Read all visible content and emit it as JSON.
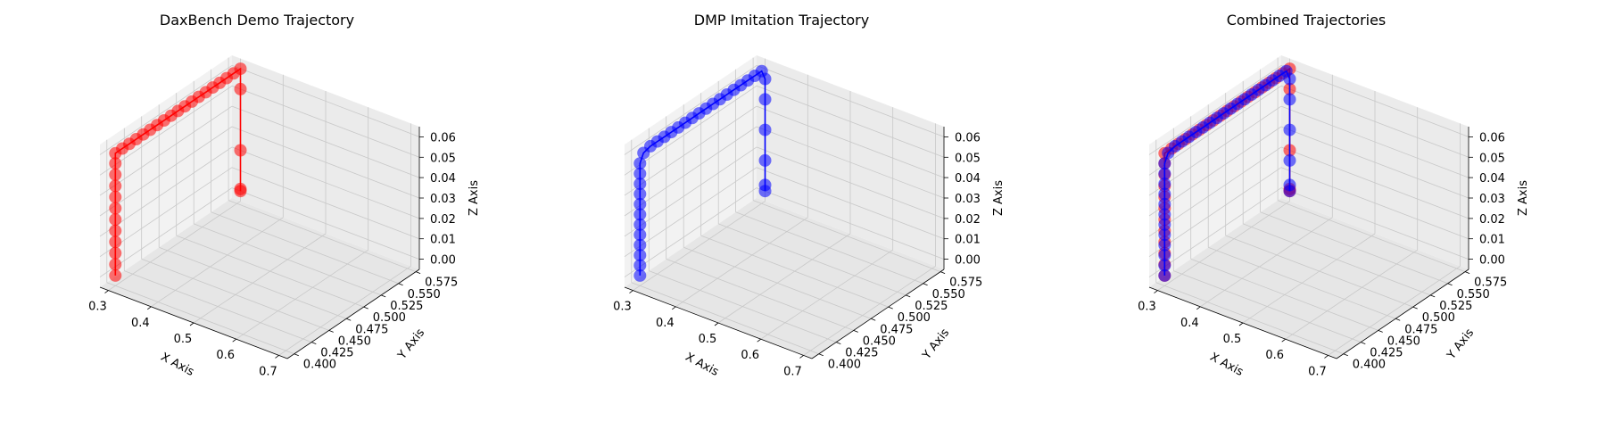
{
  "chart_data": [
    {
      "type": "scatter3d",
      "title": "DaxBench Demo Trajectory",
      "xlabel": "X Axis",
      "ylabel": "Y Axis",
      "zlabel": "Z Axis",
      "xlim": [
        0.28,
        0.72
      ],
      "ylim": [
        0.39,
        0.58
      ],
      "zlim": [
        -0.005,
        0.065
      ],
      "x_ticks": [
        "0.3",
        "0.4",
        "0.5",
        "0.6",
        "0.7"
      ],
      "y_ticks": [
        "0.400",
        "0.425",
        "0.450",
        "0.475",
        "0.500",
        "0.525",
        "0.550",
        "0.575"
      ],
      "z_ticks": [
        "0.00",
        "0.01",
        "0.02",
        "0.03",
        "0.04",
        "0.05",
        "0.06"
      ],
      "grid": true,
      "series": [
        {
          "color": "#ff0000",
          "points": [
            [
              0.3,
              0.4,
              0.0
            ],
            [
              0.3,
              0.4,
              0.0055
            ],
            [
              0.3,
              0.4,
              0.011
            ],
            [
              0.3,
              0.4,
              0.0165
            ],
            [
              0.3,
              0.4,
              0.022
            ],
            [
              0.3,
              0.4,
              0.0275
            ],
            [
              0.3,
              0.4,
              0.033
            ],
            [
              0.3,
              0.4,
              0.0385
            ],
            [
              0.3,
              0.4,
              0.044
            ],
            [
              0.3,
              0.4,
              0.0495
            ],
            [
              0.3,
              0.4,
              0.055
            ],
            [
              0.3,
              0.4,
              0.06
            ],
            [
              0.3,
              0.41,
              0.06
            ],
            [
              0.3,
              0.42,
              0.06
            ],
            [
              0.3,
              0.43,
              0.06
            ],
            [
              0.3,
              0.44,
              0.06
            ],
            [
              0.3,
              0.45,
              0.06
            ],
            [
              0.3,
              0.46,
              0.06
            ],
            [
              0.3,
              0.47,
              0.06
            ],
            [
              0.3,
              0.48,
              0.06
            ],
            [
              0.3,
              0.49,
              0.06
            ],
            [
              0.3,
              0.5,
              0.06
            ],
            [
              0.3,
              0.51,
              0.06
            ],
            [
              0.3,
              0.52,
              0.06
            ],
            [
              0.3,
              0.53,
              0.06
            ],
            [
              0.3,
              0.54,
              0.06
            ],
            [
              0.3,
              0.55,
              0.06
            ],
            [
              0.3,
              0.56,
              0.06
            ],
            [
              0.3,
              0.57,
              0.06
            ],
            [
              0.3,
              0.58,
              0.06
            ],
            [
              0.3,
              0.58,
              0.05
            ],
            [
              0.3,
              0.58,
              0.02
            ],
            [
              0.3,
              0.58,
              0.001
            ],
            [
              0.3,
              0.58,
              0.0
            ]
          ]
        }
      ]
    },
    {
      "type": "scatter3d",
      "title": "DMP Imitation Trajectory",
      "xlabel": "X Axis",
      "ylabel": "Y Axis",
      "zlabel": "Z Axis",
      "xlim": [
        0.28,
        0.72
      ],
      "ylim": [
        0.39,
        0.58
      ],
      "zlim": [
        -0.005,
        0.065
      ],
      "x_ticks": [
        "0.3",
        "0.4",
        "0.5",
        "0.6",
        "0.7"
      ],
      "y_ticks": [
        "0.400",
        "0.425",
        "0.450",
        "0.475",
        "0.500",
        "0.525",
        "0.550",
        "0.575"
      ],
      "z_ticks": [
        "0.00",
        "0.01",
        "0.02",
        "0.03",
        "0.04",
        "0.05",
        "0.06"
      ],
      "grid": true,
      "series": [
        {
          "color": "#0000ff",
          "points": [
            [
              0.3,
              0.4,
              0.0
            ],
            [
              0.3,
              0.4,
              0.005
            ],
            [
              0.3,
              0.4,
              0.01
            ],
            [
              0.3,
              0.4,
              0.015
            ],
            [
              0.3,
              0.4,
              0.02
            ],
            [
              0.3,
              0.4,
              0.025
            ],
            [
              0.3,
              0.4,
              0.03
            ],
            [
              0.3,
              0.4,
              0.035
            ],
            [
              0.3,
              0.4,
              0.04
            ],
            [
              0.3,
              0.4,
              0.045
            ],
            [
              0.3,
              0.4,
              0.05
            ],
            [
              0.3,
              0.4,
              0.055
            ],
            [
              0.3,
              0.405,
              0.059
            ],
            [
              0.3,
              0.415,
              0.06
            ],
            [
              0.3,
              0.425,
              0.06
            ],
            [
              0.3,
              0.435,
              0.06
            ],
            [
              0.3,
              0.445,
              0.06
            ],
            [
              0.3,
              0.455,
              0.06
            ],
            [
              0.3,
              0.465,
              0.06
            ],
            [
              0.3,
              0.475,
              0.06
            ],
            [
              0.3,
              0.485,
              0.06
            ],
            [
              0.3,
              0.495,
              0.06
            ],
            [
              0.3,
              0.505,
              0.06
            ],
            [
              0.3,
              0.515,
              0.06
            ],
            [
              0.3,
              0.525,
              0.06
            ],
            [
              0.3,
              0.535,
              0.06
            ],
            [
              0.3,
              0.545,
              0.06
            ],
            [
              0.3,
              0.555,
              0.06
            ],
            [
              0.3,
              0.565,
              0.06
            ],
            [
              0.3,
              0.575,
              0.06
            ],
            [
              0.3,
              0.58,
              0.055
            ],
            [
              0.3,
              0.58,
              0.045
            ],
            [
              0.3,
              0.58,
              0.03
            ],
            [
              0.3,
              0.58,
              0.015
            ],
            [
              0.3,
              0.58,
              0.003
            ],
            [
              0.3,
              0.58,
              0.0
            ]
          ]
        }
      ]
    },
    {
      "type": "scatter3d",
      "title": "Combined Trajectories",
      "xlabel": "X Axis",
      "ylabel": "Y Axis",
      "zlabel": "Z Axis",
      "xlim": [
        0.28,
        0.72
      ],
      "ylim": [
        0.39,
        0.58
      ],
      "zlim": [
        -0.005,
        0.065
      ],
      "x_ticks": [
        "0.3",
        "0.4",
        "0.5",
        "0.6",
        "0.7"
      ],
      "y_ticks": [
        "0.400",
        "0.425",
        "0.450",
        "0.475",
        "0.500",
        "0.525",
        "0.550",
        "0.575"
      ],
      "z_ticks": [
        "0.00",
        "0.01",
        "0.02",
        "0.03",
        "0.04",
        "0.05",
        "0.06"
      ],
      "grid": true,
      "series": [
        {
          "color": "#ff0000",
          "points": [
            [
              0.3,
              0.4,
              0.0
            ],
            [
              0.3,
              0.4,
              0.0055
            ],
            [
              0.3,
              0.4,
              0.011
            ],
            [
              0.3,
              0.4,
              0.0165
            ],
            [
              0.3,
              0.4,
              0.022
            ],
            [
              0.3,
              0.4,
              0.0275
            ],
            [
              0.3,
              0.4,
              0.033
            ],
            [
              0.3,
              0.4,
              0.0385
            ],
            [
              0.3,
              0.4,
              0.044
            ],
            [
              0.3,
              0.4,
              0.0495
            ],
            [
              0.3,
              0.4,
              0.055
            ],
            [
              0.3,
              0.4,
              0.06
            ],
            [
              0.3,
              0.41,
              0.06
            ],
            [
              0.3,
              0.42,
              0.06
            ],
            [
              0.3,
              0.43,
              0.06
            ],
            [
              0.3,
              0.44,
              0.06
            ],
            [
              0.3,
              0.45,
              0.06
            ],
            [
              0.3,
              0.46,
              0.06
            ],
            [
              0.3,
              0.47,
              0.06
            ],
            [
              0.3,
              0.48,
              0.06
            ],
            [
              0.3,
              0.49,
              0.06
            ],
            [
              0.3,
              0.5,
              0.06
            ],
            [
              0.3,
              0.51,
              0.06
            ],
            [
              0.3,
              0.52,
              0.06
            ],
            [
              0.3,
              0.53,
              0.06
            ],
            [
              0.3,
              0.54,
              0.06
            ],
            [
              0.3,
              0.55,
              0.06
            ],
            [
              0.3,
              0.56,
              0.06
            ],
            [
              0.3,
              0.57,
              0.06
            ],
            [
              0.3,
              0.58,
              0.06
            ],
            [
              0.3,
              0.58,
              0.05
            ],
            [
              0.3,
              0.58,
              0.02
            ],
            [
              0.3,
              0.58,
              0.001
            ],
            [
              0.3,
              0.58,
              0.0
            ]
          ]
        },
        {
          "color": "#0000ff",
          "points": [
            [
              0.3,
              0.4,
              0.0
            ],
            [
              0.3,
              0.4,
              0.005
            ],
            [
              0.3,
              0.4,
              0.01
            ],
            [
              0.3,
              0.4,
              0.015
            ],
            [
              0.3,
              0.4,
              0.02
            ],
            [
              0.3,
              0.4,
              0.025
            ],
            [
              0.3,
              0.4,
              0.03
            ],
            [
              0.3,
              0.4,
              0.035
            ],
            [
              0.3,
              0.4,
              0.04
            ],
            [
              0.3,
              0.4,
              0.045
            ],
            [
              0.3,
              0.4,
              0.05
            ],
            [
              0.3,
              0.4,
              0.055
            ],
            [
              0.3,
              0.405,
              0.059
            ],
            [
              0.3,
              0.415,
              0.06
            ],
            [
              0.3,
              0.425,
              0.06
            ],
            [
              0.3,
              0.435,
              0.06
            ],
            [
              0.3,
              0.445,
              0.06
            ],
            [
              0.3,
              0.455,
              0.06
            ],
            [
              0.3,
              0.465,
              0.06
            ],
            [
              0.3,
              0.475,
              0.06
            ],
            [
              0.3,
              0.485,
              0.06
            ],
            [
              0.3,
              0.495,
              0.06
            ],
            [
              0.3,
              0.505,
              0.06
            ],
            [
              0.3,
              0.515,
              0.06
            ],
            [
              0.3,
              0.525,
              0.06
            ],
            [
              0.3,
              0.535,
              0.06
            ],
            [
              0.3,
              0.545,
              0.06
            ],
            [
              0.3,
              0.555,
              0.06
            ],
            [
              0.3,
              0.565,
              0.06
            ],
            [
              0.3,
              0.575,
              0.06
            ],
            [
              0.3,
              0.58,
              0.055
            ],
            [
              0.3,
              0.58,
              0.045
            ],
            [
              0.3,
              0.58,
              0.03
            ],
            [
              0.3,
              0.58,
              0.015
            ],
            [
              0.3,
              0.58,
              0.003
            ],
            [
              0.3,
              0.58,
              0.0
            ]
          ]
        }
      ]
    }
  ]
}
